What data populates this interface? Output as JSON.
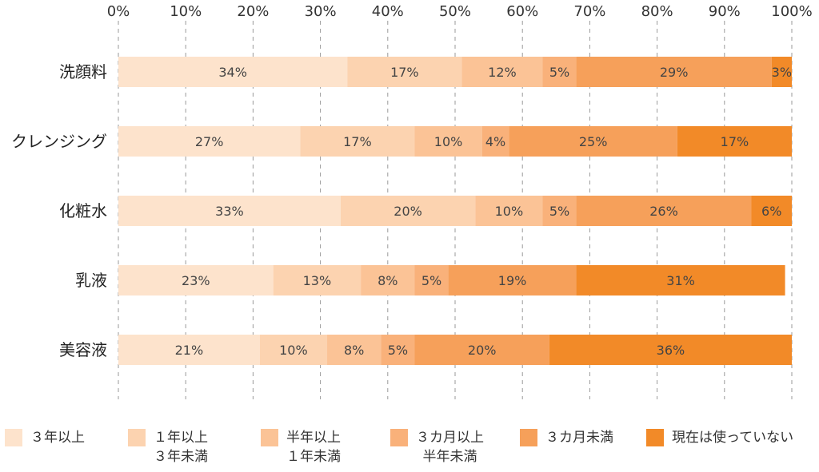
{
  "chart_data": {
    "type": "bar",
    "orientation": "horizontal",
    "stacked": true,
    "xlim": [
      0,
      100
    ],
    "x_ticks": [
      "0%",
      "10%",
      "20%",
      "30%",
      "40%",
      "50%",
      "60%",
      "70%",
      "80%",
      "90%",
      "100%"
    ],
    "grid": true,
    "legend_position": "bottom",
    "categories": [
      "洗顔料",
      "クレンジング",
      "化粧水",
      "乳液",
      "美容液"
    ],
    "series": [
      {
        "name": "３年以上",
        "color": "#fde3cc",
        "values": [
          34,
          27,
          33,
          23,
          21
        ],
        "labels": [
          "34%",
          "27%",
          "33%",
          "23%",
          "21%"
        ]
      },
      {
        "name": "１年以上\n３年未満",
        "color": "#fcd3b0",
        "values": [
          17,
          17,
          20,
          13,
          10
        ],
        "labels": [
          "17%",
          "17%",
          "20%",
          "13%",
          "10%"
        ]
      },
      {
        "name": "半年以上\n１年未満",
        "color": "#fbc396",
        "values": [
          12,
          10,
          10,
          8,
          8
        ],
        "labels": [
          "12%",
          "10%",
          "10%",
          "8%",
          "8%"
        ]
      },
      {
        "name": "３カ月以上\n半年未満",
        "color": "#f9b17a",
        "values": [
          5,
          4,
          5,
          5,
          5
        ],
        "labels": [
          "5%",
          "4%",
          "5%",
          "5%",
          "5%"
        ]
      },
      {
        "name": "３カ月未満",
        "color": "#f6a05a",
        "values": [
          29,
          25,
          26,
          19,
          20
        ],
        "labels": [
          "29%",
          "25%",
          "26%",
          "19%",
          "20%"
        ]
      },
      {
        "name": "現在は使っていない",
        "color": "#f28a28",
        "values": [
          3,
          17,
          6,
          31,
          36
        ],
        "labels": [
          "3%",
          "17%",
          "6%",
          "31%",
          "36%"
        ]
      }
    ]
  }
}
